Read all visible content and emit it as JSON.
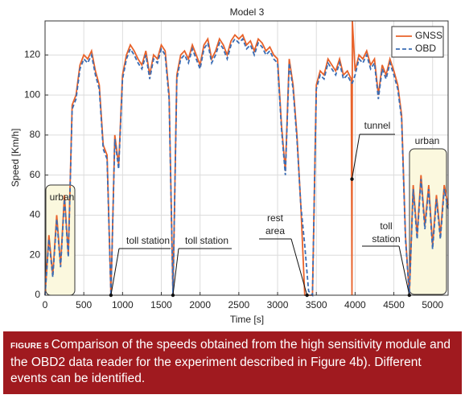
{
  "chart_data": {
    "type": "line",
    "title": "Model 3",
    "x_label": "Time [s]",
    "y_label": "Speed [Km/h]",
    "xlim": [
      0,
      5200
    ],
    "ylim": [
      0,
      137
    ],
    "xticks": [
      0,
      500,
      1000,
      1500,
      2000,
      2500,
      3000,
      3500,
      4000,
      4500,
      5000
    ],
    "yticks": [
      0,
      20,
      40,
      60,
      80,
      100,
      120
    ],
    "grid": true,
    "legend": "upper right",
    "x": [
      0,
      50,
      100,
      150,
      200,
      250,
      300,
      350,
      400,
      450,
      500,
      550,
      600,
      650,
      700,
      750,
      800,
      850,
      900,
      950,
      1000,
      1050,
      1100,
      1150,
      1200,
      1250,
      1300,
      1350,
      1400,
      1450,
      1500,
      1550,
      1600,
      1650,
      1700,
      1750,
      1800,
      1850,
      1900,
      1950,
      2000,
      2050,
      2100,
      2150,
      2200,
      2250,
      2300,
      2350,
      2400,
      2450,
      2500,
      2550,
      2600,
      2650,
      2700,
      2750,
      2800,
      2850,
      2900,
      2950,
      3000,
      3050,
      3100,
      3150,
      3200,
      3250,
      3300,
      3350,
      3400,
      3450,
      3500,
      3550,
      3600,
      3650,
      3700,
      3750,
      3800,
      3850,
      3900,
      3950,
      3960,
      3965,
      4000,
      4050,
      4100,
      4150,
      4200,
      4250,
      4300,
      4350,
      4400,
      4450,
      4500,
      4550,
      4600,
      4650,
      4700,
      4750,
      4800,
      4850,
      4900,
      4950,
      5000,
      5050,
      5100,
      5150,
      5200
    ],
    "series": [
      {
        "name": "GNSS",
        "color": "#e8622a",
        "dash": false,
        "values": [
          0,
          30,
          10,
          40,
          15,
          50,
          20,
          95,
          100,
          115,
          120,
          118,
          122,
          112,
          105,
          75,
          70,
          0,
          80,
          65,
          110,
          120,
          125,
          122,
          118,
          115,
          122,
          110,
          120,
          118,
          125,
          122,
          100,
          0,
          110,
          120,
          122,
          118,
          125,
          120,
          115,
          125,
          128,
          118,
          122,
          128,
          125,
          120,
          127,
          130,
          128,
          130,
          125,
          127,
          122,
          128,
          126,
          122,
          124,
          120,
          118,
          85,
          62,
          118,
          105,
          80,
          45,
          0,
          0,
          0,
          105,
          112,
          110,
          118,
          115,
          112,
          118,
          110,
          112,
          108,
          0,
          137,
          112,
          120,
          118,
          122,
          115,
          118,
          100,
          115,
          110,
          118,
          112,
          105,
          90,
          30,
          0,
          55,
          30,
          60,
          35,
          55,
          25,
          50,
          30,
          55,
          45
        ]
      },
      {
        "name": "OBD",
        "color": "#3a6db5",
        "dash": true,
        "values": [
          0,
          28,
          9,
          38,
          14,
          48,
          19,
          93,
          98,
          113,
          118,
          116,
          120,
          110,
          103,
          73,
          68,
          0,
          78,
          63,
          108,
          118,
          123,
          120,
          116,
          113,
          120,
          108,
          118,
          116,
          123,
          120,
          98,
          0,
          108,
          118,
          120,
          116,
          123,
          118,
          113,
          123,
          126,
          116,
          120,
          126,
          123,
          118,
          125,
          128,
          126,
          128,
          123,
          125,
          120,
          126,
          124,
          120,
          122,
          118,
          116,
          83,
          60,
          116,
          103,
          78,
          45,
          25,
          2,
          0,
          103,
          110,
          108,
          116,
          113,
          110,
          116,
          108,
          110,
          106,
          106,
          106,
          110,
          118,
          116,
          120,
          113,
          116,
          98,
          113,
          108,
          116,
          110,
          103,
          88,
          28,
          0,
          53,
          28,
          58,
          33,
          53,
          23,
          48,
          28,
          53,
          43
        ]
      }
    ],
    "annotations": [
      {
        "lines": [
          "urban"
        ]
      },
      {
        "lines": [
          "toll station"
        ],
        "point": [
          850,
          0
        ]
      },
      {
        "lines": [
          "toll station"
        ],
        "point": [
          1650,
          0
        ]
      },
      {
        "lines": [
          "rest",
          "area"
        ],
        "point": [
          3380,
          0
        ]
      },
      {
        "lines": [
          "tunnel"
        ],
        "point": [
          3960,
          58
        ]
      },
      {
        "lines": [
          "toll",
          "station"
        ],
        "point": [
          4700,
          0
        ]
      },
      {
        "lines": [
          "urban"
        ]
      }
    ]
  },
  "caption": {
    "label": "FIGURE 5",
    "text": "Comparison of the speeds obtained from the high sensitivity module and the OBD2 data reader for the experiment described in Figure 4b). Different events can be identified."
  }
}
